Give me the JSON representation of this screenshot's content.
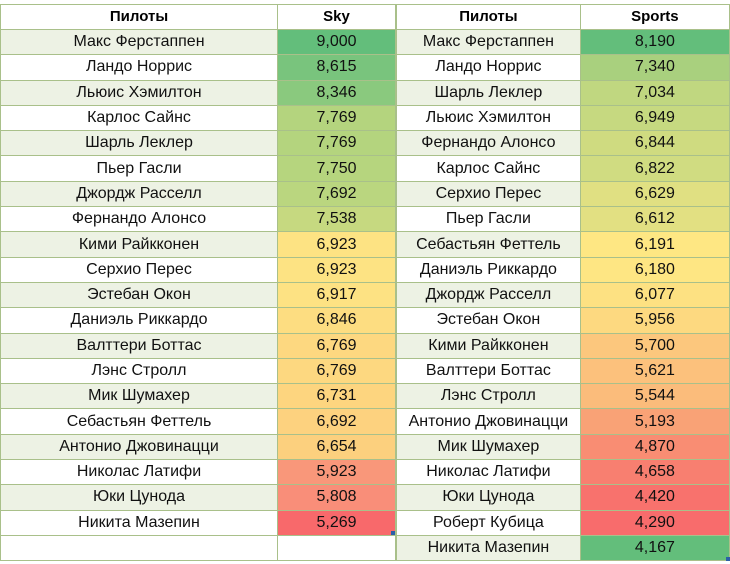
{
  "left": {
    "header_name": "Пилоты",
    "header_value": "Sky",
    "rows": [
      {
        "name": "Макс Ферстаппен",
        "value": "9,000",
        "color": "#63be7b"
      },
      {
        "name": "Ландо Норрис",
        "value": "8,615",
        "color": "#79c47d"
      },
      {
        "name": "Льюис Хэмилтон",
        "value": "8,346",
        "color": "#8ac97e"
      },
      {
        "name": "Карлос Сайнс",
        "value": "7,769",
        "color": "#b4d47e"
      },
      {
        "name": "Шарль Леклер",
        "value": "7,769",
        "color": "#b4d47e"
      },
      {
        "name": "Пьер Гасли",
        "value": "7,750",
        "color": "#b6d57e"
      },
      {
        "name": "Джордж Расселл",
        "value": "7,692",
        "color": "#bad67f"
      },
      {
        "name": "Фернандо Алонсо",
        "value": "7,538",
        "color": "#c6d980"
      },
      {
        "name": "Кими Райкконен",
        "value": "6,923",
        "color": "#fde383"
      },
      {
        "name": "Серхио Перес",
        "value": "6,923",
        "color": "#fde383"
      },
      {
        "name": "Эстебан Окон",
        "value": "6,917",
        "color": "#fde283"
      },
      {
        "name": "Даниэль Риккардо",
        "value": "6,846",
        "color": "#fddd81"
      },
      {
        "name": "Валттери Боттас",
        "value": "6,769",
        "color": "#fdd880"
      },
      {
        "name": "Лэнс Стролл",
        "value": "6,769",
        "color": "#fdd880"
      },
      {
        "name": "Мик Шумахер",
        "value": "6,731",
        "color": "#fdd57f"
      },
      {
        "name": "Себастьян Феттель",
        "value": "6,692",
        "color": "#fdd27f"
      },
      {
        "name": "Антонио Джовинацци",
        "value": "6,654",
        "color": "#fcd07e"
      },
      {
        "name": "Николас Латифи",
        "value": "5,923",
        "color": "#f9977a"
      },
      {
        "name": "Юки Цунода",
        "value": "5,808",
        "color": "#f98e79"
      },
      {
        "name": "Никита Мазепин",
        "value": "5,269",
        "color": "#f8696b"
      }
    ]
  },
  "right": {
    "header_name": "Пилоты",
    "header_value": "Sports",
    "rows": [
      {
        "name": "Макс Ферстаппен",
        "value": "8,190",
        "color": "#63be7b"
      },
      {
        "name": "Ландо Норрис",
        "value": "7,340",
        "color": "#a9d07e"
      },
      {
        "name": "Шарль Леклер",
        "value": "7,034",
        "color": "#c0d780"
      },
      {
        "name": "Льюис Хэмилтон",
        "value": "6,949",
        "color": "#c6d980"
      },
      {
        "name": "Фернандо Алонсо",
        "value": "6,844",
        "color": "#cfdb80"
      },
      {
        "name": "Карлос Сайнс",
        "value": "6,822",
        "color": "#d0dc81"
      },
      {
        "name": "Серхио Перес",
        "value": "6,629",
        "color": "#e0e082"
      },
      {
        "name": "Пьер Гасли",
        "value": "6,612",
        "color": "#e2e082"
      },
      {
        "name": "Себастьян Феттель",
        "value": "6,191",
        "color": "#fee783"
      },
      {
        "name": "Даниэль Риккардо",
        "value": "6,180",
        "color": "#fee683"
      },
      {
        "name": "Джордж Расселл",
        "value": "6,077",
        "color": "#fde182"
      },
      {
        "name": "Эстебан Окон",
        "value": "5,956",
        "color": "#fdd980"
      },
      {
        "name": "Кими Райкконен",
        "value": "5,700",
        "color": "#fcc77d"
      },
      {
        "name": "Валттери Боттас",
        "value": "5,621",
        "color": "#fcc17c"
      },
      {
        "name": "Лэнс Стролл",
        "value": "5,544",
        "color": "#fbbc7b"
      },
      {
        "name": "Антонио Джовинацци",
        "value": "5,193",
        "color": "#f9a276"
      },
      {
        "name": "Мик Шумахер",
        "value": "4,870",
        "color": "#f98d73"
      },
      {
        "name": "Николас Латифи",
        "value": "4,658",
        "color": "#f87f70"
      },
      {
        "name": "Юки Цунода",
        "value": "4,420",
        "color": "#f8726d"
      },
      {
        "name": "Роберт Кубица",
        "value": "4,290",
        "color": "#f86c6c"
      },
      {
        "name": "Никита Мазепин",
        "value": "4,167",
        "color": "#63be7b"
      }
    ]
  }
}
